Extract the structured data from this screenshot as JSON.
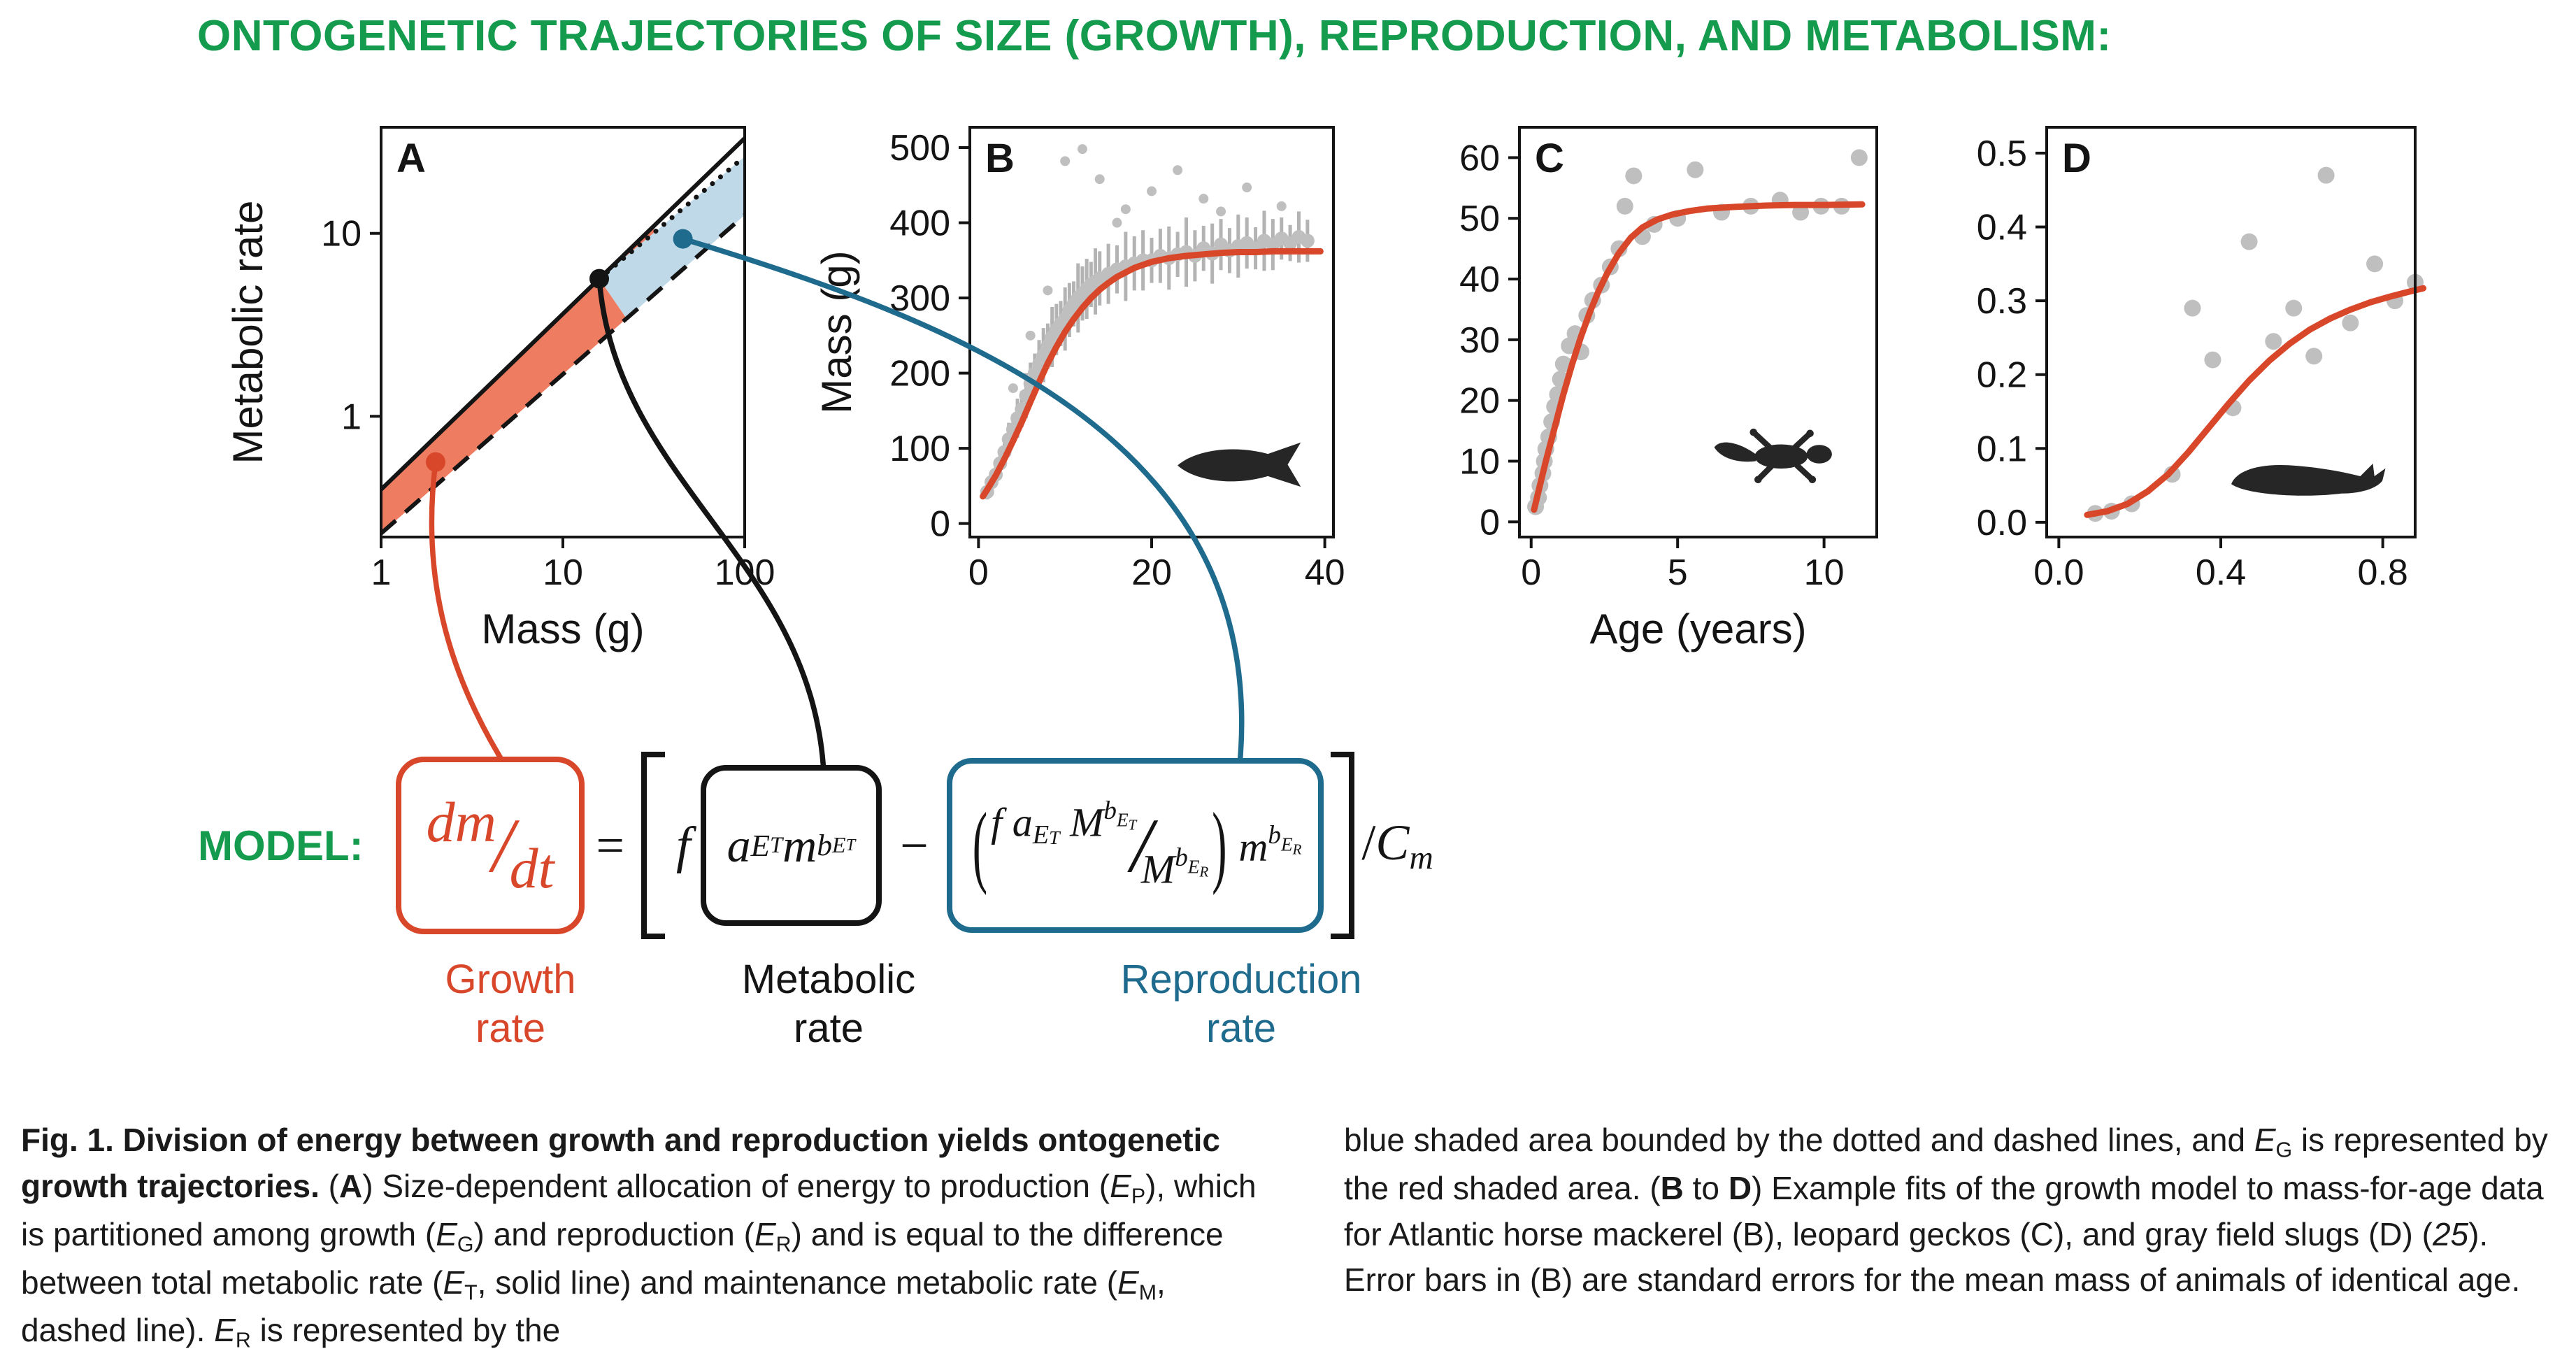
{
  "title": "ONTOGENETIC TRAJECTORIES OF SIZE (GROWTH), REPRODUCTION, AND METABOLISM:",
  "colors": {
    "green": "#149B4E",
    "red": "#D9472B",
    "blue": "#1F6B8E",
    "black": "#141414",
    "ink": "#141414",
    "ink2": "#262626",
    "gray": "#BFBFBF",
    "gray_dark": "#B3B3B3",
    "red_fill": "#ED7C60",
    "blue_fill": "#BFD9E8"
  },
  "chart_data": [
    {
      "id": "A",
      "type": "line",
      "label": "A",
      "xlabel": "Mass (g)",
      "ylabel": "Metabolic rate",
      "xscale": "log",
      "yscale": "log",
      "xticks": {
        "values": [
          0,
          1,
          2
        ],
        "labels": [
          "1",
          "10",
          "100"
        ]
      },
      "yticks": {
        "values": [
          0,
          1
        ],
        "labels": [
          "1",
          "10"
        ]
      },
      "xlim_log": [
        0,
        2
      ],
      "ylim_log": [
        -0.66,
        1.58
      ],
      "lines": [
        {
          "name": "total-metabolic-rate-ET-solid-line",
          "style": "solid",
          "from": [
            0,
            -0.4
          ],
          "to": [
            2,
            1.52
          ]
        },
        {
          "name": "maintenance-metabolic-rate-EM-dashed-line",
          "style": "dashed",
          "from": [
            0,
            -0.64
          ],
          "to": [
            2,
            1.1
          ]
        },
        {
          "name": "post-maturity-allocation-dotted-line",
          "style": "dotted",
          "from": [
            1.2,
            0.752
          ],
          "to": [
            2,
            1.42
          ]
        }
      ],
      "region_bounds": {
        "red_end": 1.5,
        "blue_lower": 1.35,
        "maturity_u": 1.2
      },
      "regions": [
        {
          "name": "growth-energy-EG",
          "color": "red"
        },
        {
          "name": "reproduction-energy-ER",
          "color": "blue"
        }
      ],
      "markers": [
        {
          "name": "growth-point",
          "color": "red",
          "at": [
            0.3,
            -0.25
          ]
        },
        {
          "name": "maturity-point",
          "color": "black",
          "at": [
            1.2,
            0.752
          ]
        },
        {
          "name": "reproduction-point",
          "color": "blue",
          "at": [
            1.66,
            0.97
          ]
        }
      ]
    },
    {
      "id": "B",
      "type": "scatter+line",
      "label": "B",
      "species": "Atlantic horse mackerel",
      "icon": "fish-icon",
      "ylabel": "Mass (g)",
      "xticks": {
        "values": [
          0,
          20,
          40
        ],
        "labels": [
          "0",
          "20",
          "40"
        ]
      },
      "yticks": {
        "values": [
          0,
          100,
          200,
          300,
          400,
          500
        ],
        "labels": [
          "0",
          "100",
          "200",
          "300",
          "400",
          "500"
        ]
      },
      "xlim": [
        -1,
        41
      ],
      "ylim": [
        -18,
        527
      ],
      "points": [
        [
          1,
          42,
          10
        ],
        [
          1.5,
          55,
          8
        ],
        [
          2,
          65,
          12
        ],
        [
          2.5,
          80,
          14
        ],
        [
          3,
          95,
          18
        ],
        [
          3.5,
          112,
          22
        ],
        [
          4,
          125,
          20
        ],
        [
          4.5,
          140,
          26
        ],
        [
          5,
          152,
          24
        ],
        [
          5.5,
          170,
          30
        ],
        [
          6,
          186,
          28
        ],
        [
          6.5,
          200,
          26
        ],
        [
          7,
          212,
          32
        ],
        [
          7.5,
          224,
          36
        ],
        [
          8,
          236,
          30
        ],
        [
          8.5,
          248,
          40
        ],
        [
          9,
          258,
          34
        ],
        [
          9.5,
          266,
          30
        ],
        [
          10,
          272,
          42
        ],
        [
          10.5,
          284,
          36
        ],
        [
          11,
          292,
          30
        ],
        [
          11.5,
          300,
          46
        ],
        [
          12,
          306,
          36
        ],
        [
          12.5,
          312,
          40
        ],
        [
          13,
          318,
          30
        ],
        [
          13.5,
          322,
          44
        ],
        [
          14,
          326,
          36
        ],
        [
          15,
          332,
          40
        ],
        [
          16,
          338,
          32
        ],
        [
          17,
          342,
          46
        ],
        [
          18,
          346,
          36
        ],
        [
          19,
          350,
          40
        ],
        [
          20,
          350,
          30
        ],
        [
          21,
          356,
          36
        ],
        [
          22,
          353,
          42
        ],
        [
          23,
          358,
          30
        ],
        [
          24,
          361,
          46
        ],
        [
          25,
          356,
          34
        ],
        [
          26,
          366,
          30
        ],
        [
          27,
          359,
          40
        ],
        [
          28,
          371,
          34
        ],
        [
          29,
          363,
          30
        ],
        [
          30,
          369,
          42
        ],
        [
          31,
          373,
          34
        ],
        [
          32,
          366,
          28
        ],
        [
          33,
          376,
          40
        ],
        [
          34,
          371,
          34
        ],
        [
          35,
          379,
          28
        ],
        [
          36,
          373,
          24
        ],
        [
          37,
          381,
          34
        ],
        [
          38,
          376,
          28
        ],
        [
          10,
          482,
          0
        ],
        [
          12,
          498,
          0
        ],
        [
          14,
          458,
          0
        ],
        [
          17,
          418,
          0
        ],
        [
          20,
          442,
          0
        ],
        [
          23,
          470,
          0
        ],
        [
          26,
          432,
          0
        ],
        [
          31,
          447,
          0
        ],
        [
          35,
          422,
          0
        ],
        [
          6,
          250,
          0
        ],
        [
          8,
          310,
          0
        ],
        [
          4,
          180,
          0
        ],
        [
          16,
          400,
          0
        ],
        [
          28,
          415,
          0
        ]
      ],
      "curve": [
        [
          0.5,
          36
        ],
        [
          1,
          45
        ],
        [
          2,
          64
        ],
        [
          3,
          86
        ],
        [
          4,
          110
        ],
        [
          5,
          135
        ],
        [
          6,
          162
        ],
        [
          7,
          188
        ],
        [
          8,
          213
        ],
        [
          9,
          235
        ],
        [
          10,
          255
        ],
        [
          11,
          272
        ],
        [
          12,
          287
        ],
        [
          13,
          300
        ],
        [
          14,
          311
        ],
        [
          15,
          320
        ],
        [
          16,
          328
        ],
        [
          17,
          334
        ],
        [
          18,
          340
        ],
        [
          19,
          344
        ],
        [
          20,
          348
        ],
        [
          22,
          353
        ],
        [
          24,
          356
        ],
        [
          26,
          358
        ],
        [
          28,
          360
        ],
        [
          30,
          361
        ],
        [
          32,
          361
        ],
        [
          34,
          362
        ],
        [
          36,
          362
        ],
        [
          38,
          362
        ],
        [
          39.5,
          362
        ]
      ]
    },
    {
      "id": "C",
      "type": "scatter+line",
      "label": "C",
      "species": "leopard gecko",
      "icon": "gecko-icon",
      "xlabel": "Age (years)",
      "xticks": {
        "values": [
          0,
          5,
          10
        ],
        "labels": [
          "0",
          "5",
          "10"
        ]
      },
      "yticks": {
        "values": [
          0,
          10,
          20,
          30,
          40,
          50,
          60
        ],
        "labels": [
          "0",
          "10",
          "20",
          "30",
          "40",
          "50",
          "60"
        ]
      },
      "xlim": [
        -0.4,
        11.8
      ],
      "ylim": [
        -2.5,
        65
      ],
      "points": [
        [
          0.15,
          2.5
        ],
        [
          0.25,
          4
        ],
        [
          0.3,
          6
        ],
        [
          0.4,
          8
        ],
        [
          0.45,
          10
        ],
        [
          0.5,
          12
        ],
        [
          0.6,
          14
        ],
        [
          0.7,
          16.5
        ],
        [
          0.8,
          19
        ],
        [
          0.9,
          21
        ],
        [
          1.0,
          23.5
        ],
        [
          1.1,
          26
        ],
        [
          1.3,
          29
        ],
        [
          1.5,
          31
        ],
        [
          1.7,
          28
        ],
        [
          1.9,
          34
        ],
        [
          2.1,
          36.5
        ],
        [
          2.4,
          39
        ],
        [
          2.7,
          42
        ],
        [
          3.0,
          45
        ],
        [
          3.2,
          52
        ],
        [
          3.5,
          57
        ],
        [
          3.8,
          47
        ],
        [
          4.2,
          49
        ],
        [
          5.0,
          50
        ],
        [
          5.6,
          58
        ],
        [
          6.5,
          51
        ],
        [
          7.5,
          52
        ],
        [
          8.5,
          53
        ],
        [
          9.2,
          51
        ],
        [
          9.9,
          52
        ],
        [
          10.6,
          52
        ],
        [
          11.2,
          60
        ]
      ],
      "curve": [
        [
          0.1,
          2
        ],
        [
          0.3,
          6
        ],
        [
          0.5,
          10
        ],
        [
          0.8,
          15.5
        ],
        [
          1.1,
          21
        ],
        [
          1.4,
          26
        ],
        [
          1.7,
          30.5
        ],
        [
          2.0,
          34.5
        ],
        [
          2.3,
          38
        ],
        [
          2.6,
          41
        ],
        [
          3.0,
          44.3
        ],
        [
          3.4,
          46.8
        ],
        [
          3.8,
          48.5
        ],
        [
          4.3,
          49.8
        ],
        [
          4.8,
          50.6
        ],
        [
          5.4,
          51.2
        ],
        [
          6.0,
          51.6
        ],
        [
          7.0,
          51.9
        ],
        [
          8.0,
          52.1
        ],
        [
          9.0,
          52.2
        ],
        [
          10.0,
          52.2
        ],
        [
          11.3,
          52.3
        ]
      ]
    },
    {
      "id": "D",
      "type": "scatter+line",
      "label": "D",
      "species": "gray field slug",
      "icon": "slug-icon",
      "xticks": {
        "values": [
          0,
          0.4,
          0.8
        ],
        "labels": [
          "0.0",
          "0.4",
          "0.8"
        ]
      },
      "yticks": {
        "values": [
          0,
          0.1,
          0.2,
          0.3,
          0.4,
          0.5
        ],
        "labels": [
          "0.0",
          "0.1",
          "0.2",
          "0.3",
          "0.4",
          "0.5"
        ]
      },
      "xlim": [
        -0.03,
        0.88
      ],
      "ylim": [
        -0.02,
        0.535
      ],
      "points": [
        [
          0.09,
          0.012
        ],
        [
          0.13,
          0.015
        ],
        [
          0.18,
          0.025
        ],
        [
          0.28,
          0.065
        ],
        [
          0.33,
          0.29
        ],
        [
          0.38,
          0.22
        ],
        [
          0.43,
          0.155
        ],
        [
          0.47,
          0.38
        ],
        [
          0.53,
          0.245
        ],
        [
          0.58,
          0.29
        ],
        [
          0.63,
          0.225
        ],
        [
          0.66,
          0.47
        ],
        [
          0.72,
          0.27
        ],
        [
          0.78,
          0.35
        ],
        [
          0.83,
          0.3
        ],
        [
          0.88,
          0.325
        ]
      ],
      "curve": [
        [
          0.07,
          0.01
        ],
        [
          0.12,
          0.015
        ],
        [
          0.17,
          0.025
        ],
        [
          0.22,
          0.042
        ],
        [
          0.27,
          0.065
        ],
        [
          0.32,
          0.095
        ],
        [
          0.37,
          0.128
        ],
        [
          0.42,
          0.161
        ],
        [
          0.47,
          0.192
        ],
        [
          0.52,
          0.219
        ],
        [
          0.57,
          0.242
        ],
        [
          0.62,
          0.261
        ],
        [
          0.67,
          0.276
        ],
        [
          0.72,
          0.288
        ],
        [
          0.77,
          0.298
        ],
        [
          0.82,
          0.306
        ],
        [
          0.87,
          0.313
        ],
        [
          0.9,
          0.317
        ]
      ]
    }
  ],
  "connectors": [
    {
      "name": "growth-connector",
      "color": "red"
    },
    {
      "name": "metabolic-connector",
      "color": "black"
    },
    {
      "name": "reproduction-connector",
      "color": "blue"
    }
  ],
  "model": {
    "label": "MODEL:",
    "equals": "=",
    "minus": "−",
    "slash": "/",
    "f": "f",
    "lparen": "(",
    "rparen": ")",
    "growth_num": [
      {
        "t": "dm",
        "cls": "i"
      }
    ],
    "growth_den": [
      {
        "t": "dt",
        "cls": "i"
      }
    ],
    "metabolic_segments": [
      {
        "t": "a",
        "cls": "i"
      },
      {
        "t": "E",
        "cls": "i sub"
      },
      {
        "t": "T",
        "cls": "i sub2"
      },
      {
        "t": " "
      },
      {
        "t": "m",
        "cls": "i"
      },
      {
        "t": "b",
        "cls": "i sup"
      },
      {
        "t": "E",
        "cls": "i supsub"
      },
      {
        "t": "T",
        "cls": "i supsub2"
      }
    ],
    "blue_num": [
      {
        "t": "f",
        "cls": "i"
      },
      {
        "t": " "
      },
      {
        "t": "a",
        "cls": "i"
      },
      {
        "t": "E",
        "cls": "i sub"
      },
      {
        "t": "T",
        "cls": "i sub2"
      },
      {
        "t": " "
      },
      {
        "t": "M",
        "cls": "i"
      },
      {
        "t": "b",
        "cls": "i sup"
      },
      {
        "t": "E",
        "cls": "i supsub"
      },
      {
        "t": "T",
        "cls": "i supsub2"
      }
    ],
    "blue_den": [
      {
        "t": "M",
        "cls": "i"
      },
      {
        "t": "b",
        "cls": "i sup"
      },
      {
        "t": "E",
        "cls": "i supsub"
      },
      {
        "t": "R",
        "cls": "i supsub2"
      }
    ],
    "blue_tail": [
      {
        "t": "m",
        "cls": "i"
      },
      {
        "t": "b",
        "cls": "i sup"
      },
      {
        "t": "E",
        "cls": "i supsub"
      },
      {
        "t": "R",
        "cls": "i supsub2"
      }
    ],
    "cost_segments": [
      {
        "t": "/"
      },
      {
        "t": "C",
        "cls": "i"
      },
      {
        "t": "m",
        "cls": "i sub"
      }
    ]
  },
  "labels": {
    "growth": "Growth\nrate",
    "metabolic": "Metabolic\nrate",
    "reproduction": "Reproduction\nrate"
  },
  "caption": {
    "left": [
      {
        "t": "Fig. 1. Division of energy between growth and reproduction yields ontogenetic growth trajectories.",
        "cls": "b"
      },
      {
        "t": " ("
      },
      {
        "t": "A",
        "cls": "b"
      },
      {
        "t": ") Size-dependent allocation of energy to production ("
      },
      {
        "t": "E",
        "cls": "i"
      },
      {
        "t": "P",
        "cls": "sub"
      },
      {
        "t": "), which is partitioned among growth ("
      },
      {
        "t": "E",
        "cls": "i"
      },
      {
        "t": "G",
        "cls": "sub"
      },
      {
        "t": ") and reproduction ("
      },
      {
        "t": "E",
        "cls": "i"
      },
      {
        "t": "R",
        "cls": "sub"
      },
      {
        "t": ") and is equal to the difference between total metabolic rate ("
      },
      {
        "t": "E",
        "cls": "i"
      },
      {
        "t": "T",
        "cls": "sub"
      },
      {
        "t": ", solid line) and maintenance metabolic rate ("
      },
      {
        "t": "E",
        "cls": "i"
      },
      {
        "t": "M",
        "cls": "sub"
      },
      {
        "t": ", dashed line). "
      },
      {
        "t": "E",
        "cls": "i"
      },
      {
        "t": "R",
        "cls": "sub"
      },
      {
        "t": " is represented by the"
      }
    ],
    "right": [
      {
        "t": "blue shaded area bounded by the dotted and dashed lines, and "
      },
      {
        "t": "E",
        "cls": "i"
      },
      {
        "t": "G",
        "cls": "sub"
      },
      {
        "t": " is represented by the red shaded area. ("
      },
      {
        "t": "B",
        "cls": "b"
      },
      {
        "t": " to "
      },
      {
        "t": "D",
        "cls": "b"
      },
      {
        "t": ") Example fits of the growth model to mass-for-age data for Atlantic horse mackerel (B), leopard geckos (C), and gray field slugs (D) ("
      },
      {
        "t": "25",
        "cls": "i"
      },
      {
        "t": "). Error bars in (B) are standard errors for the mean mass of animals of identical age."
      }
    ]
  }
}
